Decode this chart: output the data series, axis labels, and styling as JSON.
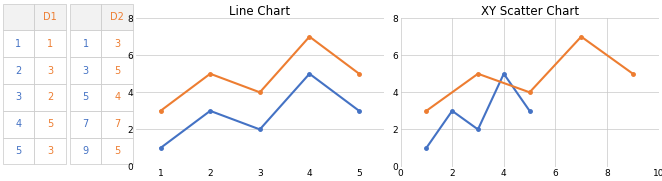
{
  "d1_x": [
    1,
    2,
    3,
    4,
    5
  ],
  "d1_y": [
    1,
    3,
    2,
    5,
    3
  ],
  "d2_x": [
    1,
    3,
    5,
    7,
    9
  ],
  "d2_y": [
    3,
    5,
    4,
    7,
    5
  ],
  "line_chart_title": "Line Chart",
  "scatter_chart_title": "XY Scatter Chart",
  "color_blue": "#4472C4",
  "color_orange": "#ED7D31",
  "bg_color": "#FFFFFF",
  "plot_bg": "#FFFFFF",
  "grid_color": "#C8C8C8",
  "table_d1_header": "D1",
  "table_d2_header": "D2",
  "line_ylim": [
    0,
    8
  ],
  "line_xlim": [
    0.5,
    5.5
  ],
  "scatter_ylim": [
    0,
    8
  ],
  "scatter_xlim": [
    0,
    10
  ],
  "line_yticks": [
    0,
    2,
    4,
    6,
    8
  ],
  "line_xticks": [
    1,
    2,
    3,
    4,
    5
  ],
  "scatter_yticks": [
    0,
    2,
    4,
    6,
    8
  ],
  "scatter_xticks": [
    0,
    2,
    4,
    6,
    8,
    10
  ],
  "border_color": "#C8C8C8",
  "header_bg": "#F2F2F2",
  "title_fontsize": 8.5,
  "tick_fontsize": 6.5,
  "table_fontsize": 7.0
}
